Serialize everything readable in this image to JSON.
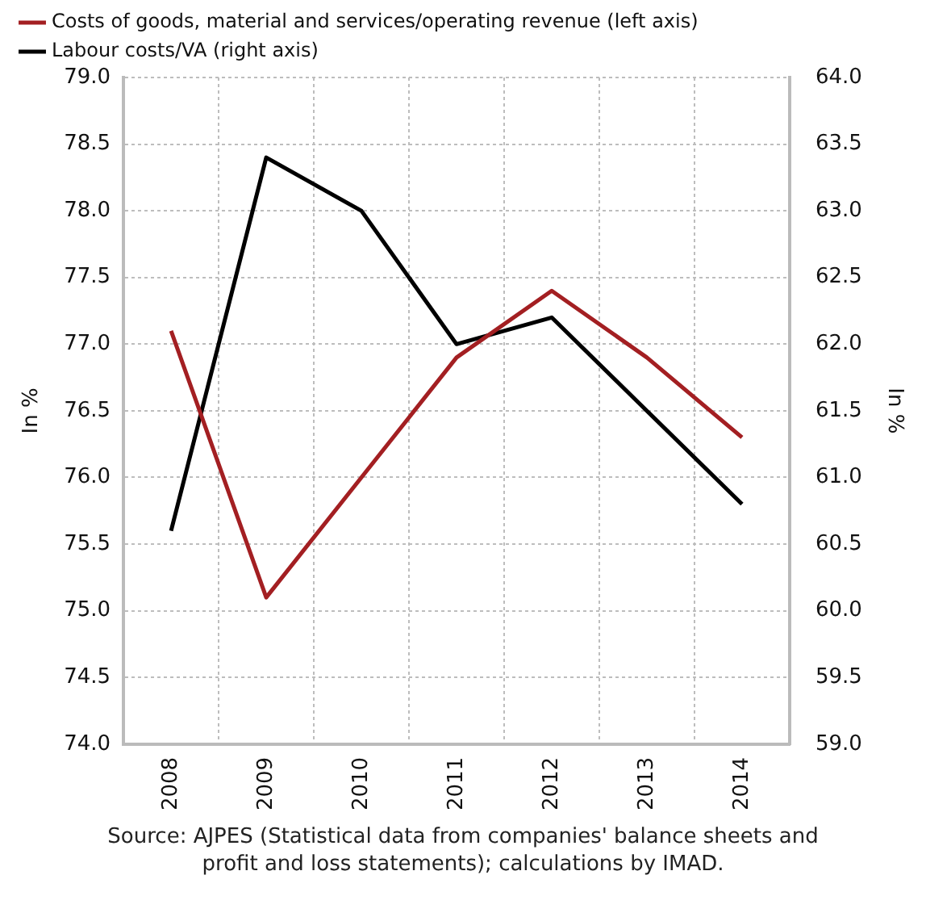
{
  "chart_data": {
    "type": "line",
    "categories": [
      "2008",
      "2009",
      "2010",
      "2011",
      "2012",
      "2013",
      "2014"
    ],
    "series": [
      {
        "name": "Costs of goods, material and services/operating revenue (left axis)",
        "color": "#a31f22",
        "values": [
          77.1,
          75.1,
          76.0,
          76.9,
          77.4,
          76.9,
          76.3
        ]
      },
      {
        "name": "Labour costs/VA (right axis)",
        "color": "#000000",
        "axis": "y2",
        "values": [
          60.6,
          63.4,
          63.0,
          62.0,
          62.2,
          61.5,
          60.8
        ]
      }
    ],
    "ylabel": "In %",
    "y2label": "In %",
    "ylim": [
      74,
      79
    ],
    "yticks": [
      {
        "value": 74,
        "label": "74.0"
      },
      74.5,
      {
        "value": 75,
        "label": "75.0"
      },
      75.5,
      {
        "value": 76,
        "label": "76.0"
      },
      76.5,
      {
        "value": 77,
        "label": "77.0"
      },
      77.5,
      {
        "value": 78,
        "label": "78.0"
      },
      78.5,
      {
        "value": 79,
        "label": "79.0"
      }
    ],
    "y2lim": [
      59,
      64
    ],
    "y2ticks": [
      {
        "value": 59,
        "label": "59.0"
      },
      59.5,
      {
        "value": 60,
        "label": "60.0"
      },
      60.5,
      {
        "value": 61,
        "label": "61.0"
      },
      61.5,
      {
        "value": 62,
        "label": "62.0"
      },
      62.5,
      {
        "value": 63,
        "label": "63.0"
      },
      63.5,
      {
        "value": 64,
        "label": "64.0"
      }
    ],
    "grid": true,
    "legend": "top left",
    "marker": "none",
    "line_style": "solid",
    "annotations": [
      "Source: AJPES (Statistical data from companies' balance sheets and profit and loss statements); calculations by IMAD."
    ]
  }
}
